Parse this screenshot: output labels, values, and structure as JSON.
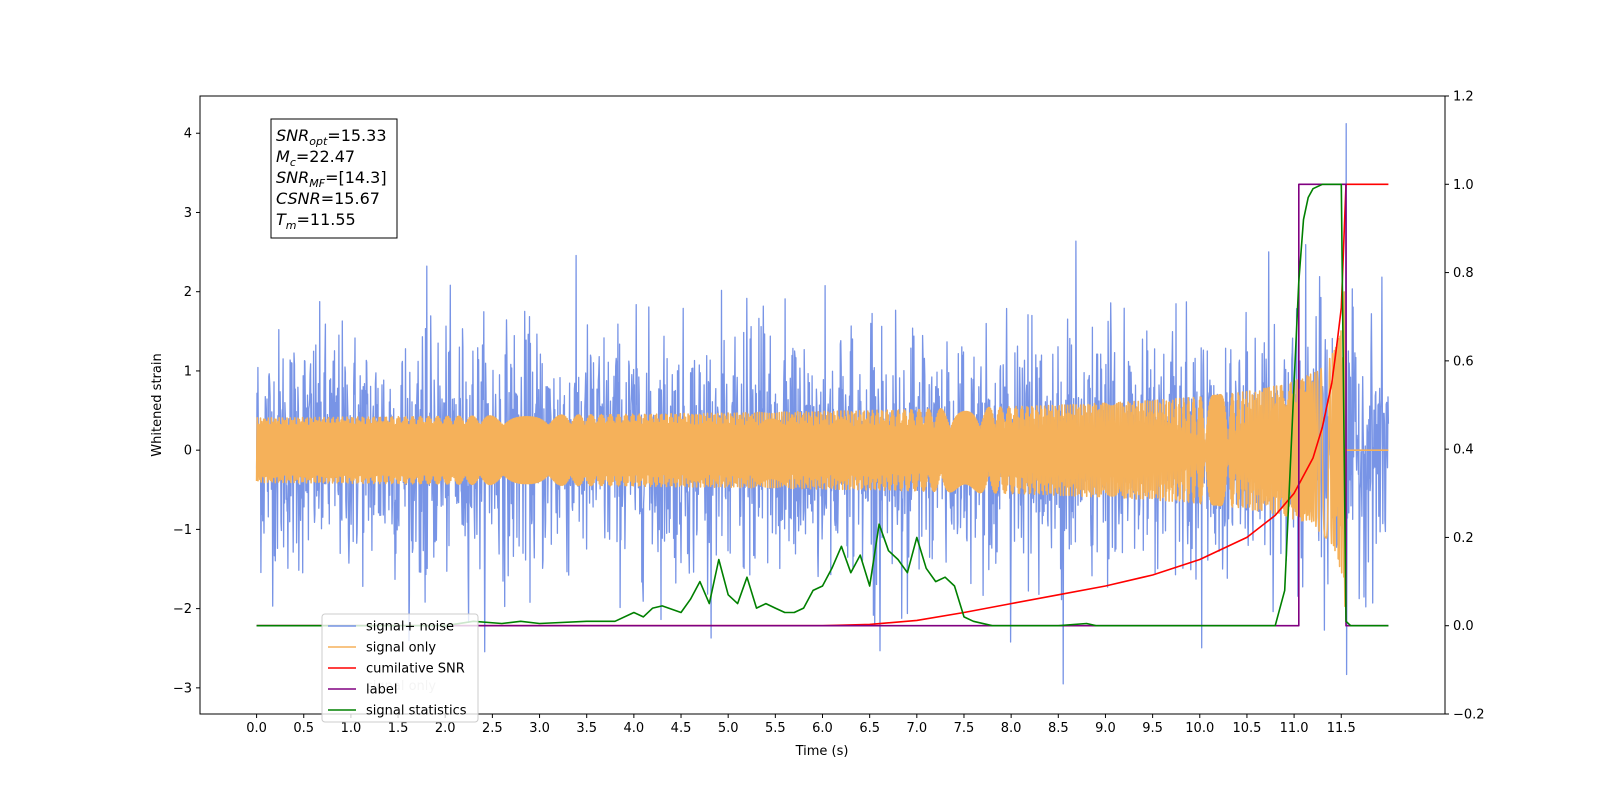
{
  "chart_data": {
    "type": "line",
    "xlabel": "Time (s)",
    "ylabel": "Whitened strain",
    "xlim": [
      -0.6,
      12.6
    ],
    "ylim": [
      -3.33,
      4.47
    ],
    "y2lim": [
      -0.2,
      1.2
    ],
    "x_ticks": [
      "0.0",
      "0.5",
      "1.0",
      "1.5",
      "2.0",
      "2.5",
      "3.0",
      "3.5",
      "4.0",
      "4.5",
      "5.0",
      "5.5",
      "6.0",
      "6.5",
      "7.0",
      "7.5",
      "8.0",
      "8.5",
      "9.0",
      "9.5",
      "10.0",
      "10.5",
      "11.0",
      "11.5"
    ],
    "y_ticks": [
      "4",
      "3",
      "2",
      "1",
      "0",
      "−1",
      "−2",
      "−3"
    ],
    "y2_ticks": [
      "1.2",
      "1.0",
      "0.8",
      "0.6",
      "0.4",
      "0.2",
      "0.0",
      "−0.2"
    ],
    "legend_position": "lower-left",
    "legend_overlap_text": "signal only",
    "annotation": {
      "lines": [
        {
          "base": "SNR",
          "sub": "opt",
          "value": "=15.33"
        },
        {
          "base": "M",
          "sub": "c",
          "value": "=22.47"
        },
        {
          "base": "SNR",
          "sub": "MF",
          "value": "=[14.3]"
        },
        {
          "base": "CSNR",
          "sub": "",
          "value": "=15.67"
        },
        {
          "base": "T",
          "sub": "m",
          "value": "=11.55"
        }
      ]
    },
    "series": [
      {
        "name": "signal+ noise",
        "color": "#7894e6",
        "axis": "left",
        "kind": "noise",
        "x_range": [
          0.0,
          12.0
        ],
        "std": 0.75,
        "min": -2.95,
        "max": 4.12,
        "peak_x": 11.55
      },
      {
        "name": "signal only",
        "color": "#f5b15a",
        "axis": "left",
        "kind": "chirp",
        "x_range": [
          0.0,
          12.0
        ],
        "merger_time": 11.55,
        "peak_amplitude": 2.0
      },
      {
        "name": "cumilative SNR",
        "color": "#ff0000",
        "axis": "right",
        "x": [
          0.0,
          6.0,
          6.5,
          7.0,
          7.5,
          8.0,
          8.5,
          9.0,
          9.5,
          10.0,
          10.5,
          10.8,
          11.0,
          11.2,
          11.3,
          11.4,
          11.45,
          11.5,
          11.55,
          12.0
        ],
        "y": [
          0.0,
          0.0,
          0.003,
          0.012,
          0.03,
          0.05,
          0.07,
          0.09,
          0.115,
          0.15,
          0.2,
          0.25,
          0.3,
          0.38,
          0.45,
          0.55,
          0.63,
          0.72,
          1.0,
          1.0
        ]
      },
      {
        "name": "label",
        "color": "#800080",
        "axis": "right",
        "x": [
          0.0,
          11.05,
          11.05,
          11.55,
          11.55,
          12.0
        ],
        "y": [
          0.0,
          0.0,
          1.0,
          1.0,
          0.0,
          0.0
        ]
      },
      {
        "name": "signal statistics",
        "color": "#008000",
        "axis": "right",
        "x": [
          0.0,
          2.0,
          2.3,
          2.6,
          2.8,
          3.0,
          3.5,
          3.8,
          4.0,
          4.1,
          4.2,
          4.3,
          4.5,
          4.6,
          4.7,
          4.8,
          4.9,
          5.0,
          5.1,
          5.2,
          5.3,
          5.4,
          5.5,
          5.6,
          5.7,
          5.8,
          5.9,
          6.0,
          6.1,
          6.2,
          6.3,
          6.4,
          6.5,
          6.6,
          6.7,
          6.8,
          6.9,
          7.0,
          7.1,
          7.2,
          7.3,
          7.4,
          7.5,
          7.6,
          7.8,
          8.0,
          8.5,
          8.8,
          8.9,
          9.0,
          10.5,
          10.8,
          10.9,
          11.0,
          11.05,
          11.1,
          11.15,
          11.2,
          11.3,
          11.4,
          11.5,
          11.55,
          11.6,
          12.0
        ],
        "y": [
          0.0,
          0.0,
          0.01,
          0.005,
          0.01,
          0.005,
          0.01,
          0.01,
          0.03,
          0.02,
          0.04,
          0.045,
          0.03,
          0.06,
          0.1,
          0.05,
          0.15,
          0.07,
          0.05,
          0.11,
          0.04,
          0.05,
          0.04,
          0.03,
          0.03,
          0.04,
          0.08,
          0.09,
          0.13,
          0.18,
          0.12,
          0.16,
          0.09,
          0.23,
          0.17,
          0.15,
          0.12,
          0.2,
          0.13,
          0.1,
          0.11,
          0.09,
          0.02,
          0.01,
          0.0,
          0.0,
          0.0,
          0.005,
          0.0,
          0.0,
          0.0,
          0.0,
          0.08,
          0.55,
          0.78,
          0.92,
          0.97,
          0.99,
          1.0,
          1.0,
          1.0,
          0.01,
          0.0,
          0.0
        ]
      }
    ]
  }
}
